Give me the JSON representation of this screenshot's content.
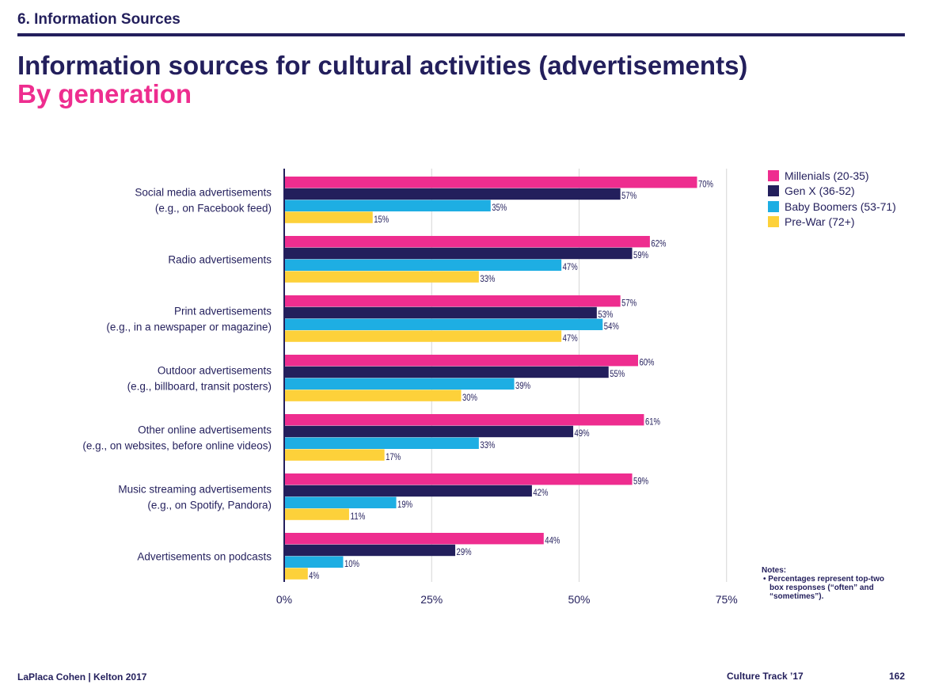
{
  "header": {
    "section": "6. Information Sources",
    "title": "Information sources for cultural activities (advertisements)",
    "subtitle": "By generation"
  },
  "colors": {
    "navy": "#231f5c",
    "pink": "#ee2d8f",
    "millennials": "#ee2d8f",
    "genx": "#231f5c",
    "boomers": "#1eaee3",
    "prewar": "#fdd13a",
    "grid": "#d6d6d6"
  },
  "chart_data": {
    "type": "bar",
    "orientation": "horizontal",
    "categories": [
      [
        "Social media advertisements",
        "(e.g., on Facebook feed)"
      ],
      [
        "Radio advertisements"
      ],
      [
        "Print advertisements",
        "(e.g., in a newspaper or magazine)"
      ],
      [
        "Outdoor advertisements",
        "(e.g., billboard, transit posters)"
      ],
      [
        "Other online advertisements",
        "(e.g., on websites, before online videos)"
      ],
      [
        "Music streaming advertisements",
        "(e.g., on Spotify, Pandora)"
      ],
      [
        "Advertisements on podcasts"
      ]
    ],
    "series": [
      {
        "name": "Millenials (20-35)",
        "color": "#ee2d8f",
        "values": [
          70,
          62,
          57,
          60,
          61,
          59,
          44
        ]
      },
      {
        "name": "Gen X (36-52)",
        "color": "#231f5c",
        "values": [
          57,
          59,
          53,
          55,
          49,
          42,
          29
        ]
      },
      {
        "name": "Baby Boomers (53-71)",
        "color": "#1eaee3",
        "values": [
          35,
          47,
          54,
          39,
          33,
          19,
          10
        ]
      },
      {
        "name": "Pre-War (72+)",
        "color": "#fdd13a",
        "values": [
          15,
          33,
          47,
          30,
          17,
          11,
          4
        ]
      }
    ],
    "xlim": [
      0,
      75
    ],
    "xticks": [
      0,
      25,
      50,
      75
    ],
    "xtick_labels": [
      "0%",
      "25%",
      "50%",
      "75%"
    ],
    "value_suffix": "%",
    "grid": true,
    "legend": "top-right"
  },
  "notes": {
    "heading": "Notes:",
    "items": [
      "Percentages represent top-two box responses (“often” and “sometimes”)."
    ]
  },
  "footer": {
    "left": "LaPlaca Cohen | Kelton 2017",
    "center": "Culture Track ’17",
    "page": "162"
  }
}
